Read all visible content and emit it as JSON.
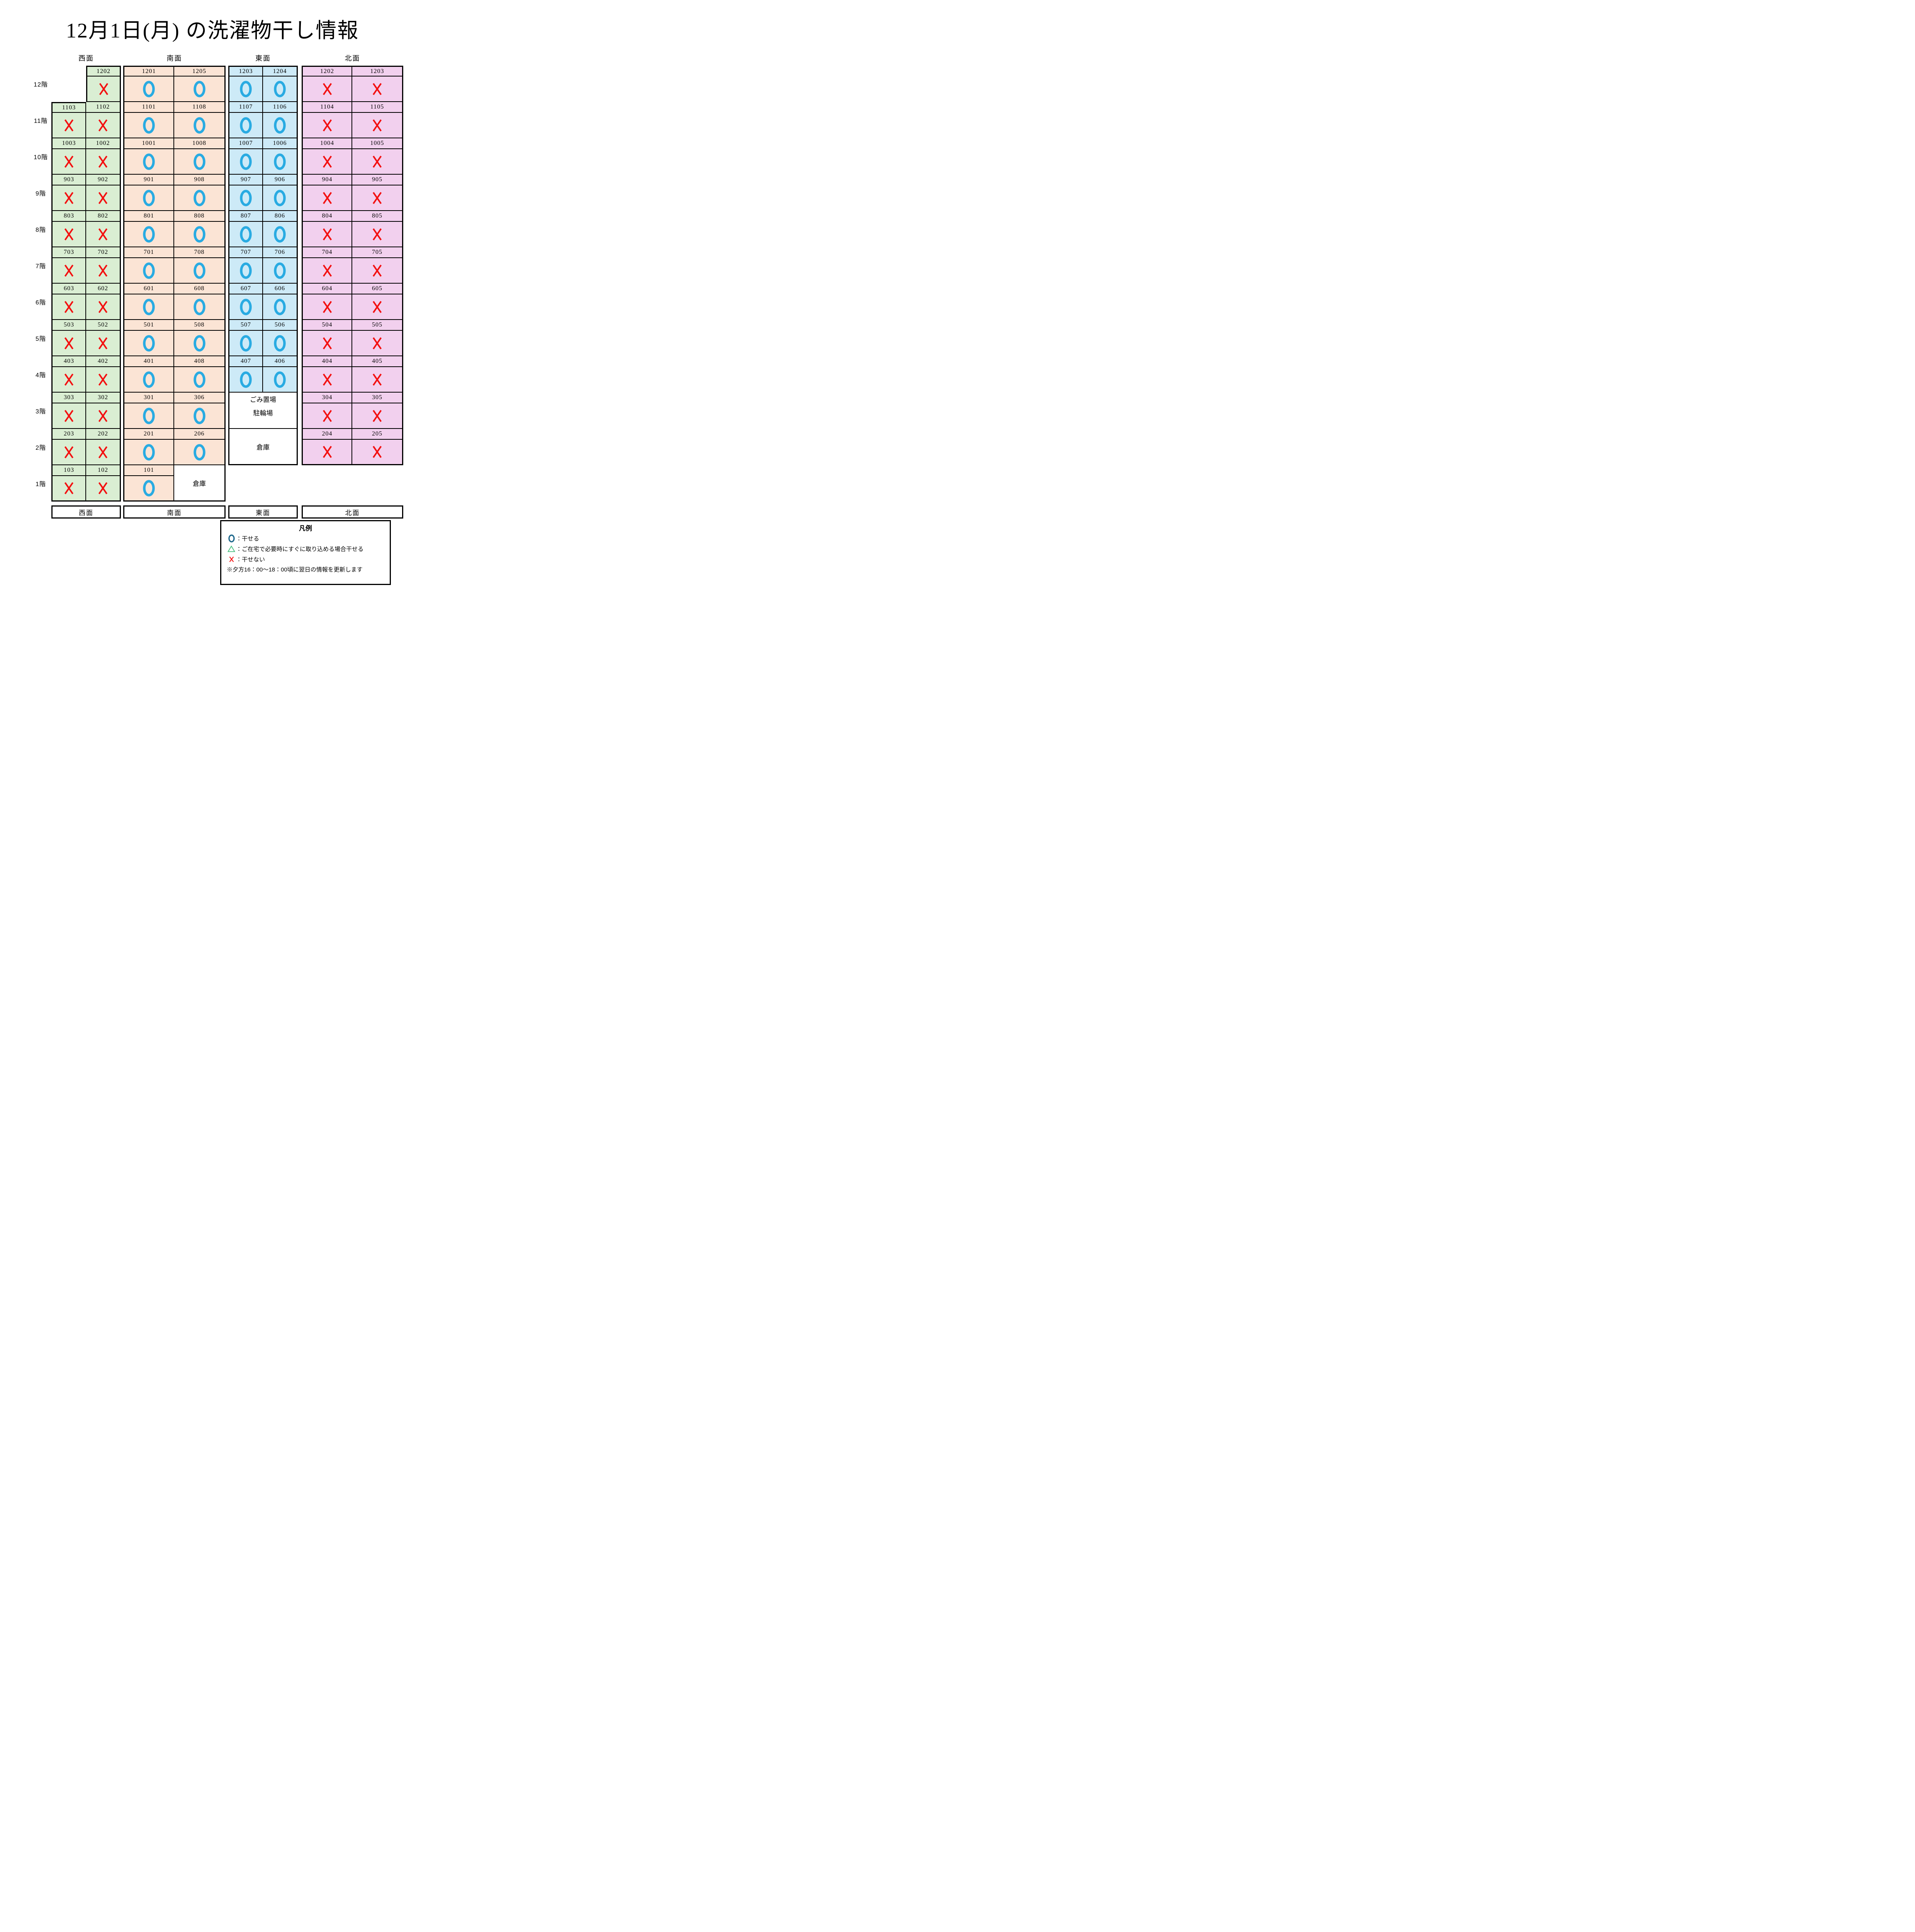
{
  "title": "12月1日(月) の洗濯物干し情報",
  "faces": [
    {
      "id": "west",
      "label": "西面",
      "bg": "#daeed3"
    },
    {
      "id": "south",
      "label": "南面",
      "bg": "#fbe4d5"
    },
    {
      "id": "east",
      "label": "東面",
      "bg": "#cdeaf7"
    },
    {
      "id": "north",
      "label": "北面",
      "bg": "#f2d0ee"
    }
  ],
  "footer_labels": [
    "西面",
    "南面",
    "東面",
    "北面"
  ],
  "colors": {
    "border": "#000000",
    "mark_ok": "#29abe2",
    "mark_no": "#f31111",
    "legend_ok": "#20698c",
    "legend_maybe": "#3dbb78",
    "legend_no": "#f31111"
  },
  "floors": [
    {
      "label": "12階",
      "west": [
        null,
        {
          "room": "1202",
          "mark": "no"
        }
      ],
      "south": [
        {
          "room": "1201",
          "mark": "ok"
        },
        {
          "room": "1205",
          "mark": "ok"
        }
      ],
      "east": [
        {
          "room": "1203",
          "mark": "ok"
        },
        {
          "room": "1204",
          "mark": "ok"
        }
      ],
      "north": [
        {
          "room": "1202",
          "mark": "no"
        },
        {
          "room": "1203",
          "mark": "no"
        }
      ]
    },
    {
      "label": "11階",
      "west": [
        {
          "room": "1103",
          "mark": "no"
        },
        {
          "room": "1102",
          "mark": "no"
        }
      ],
      "south": [
        {
          "room": "1101",
          "mark": "ok"
        },
        {
          "room": "1108",
          "mark": "ok"
        }
      ],
      "east": [
        {
          "room": "1107",
          "mark": "ok"
        },
        {
          "room": "1106",
          "mark": "ok"
        }
      ],
      "north": [
        {
          "room": "1104",
          "mark": "no"
        },
        {
          "room": "1105",
          "mark": "no"
        }
      ]
    },
    {
      "label": "10階",
      "west": [
        {
          "room": "1003",
          "mark": "no"
        },
        {
          "room": "1002",
          "mark": "no"
        }
      ],
      "south": [
        {
          "room": "1001",
          "mark": "ok"
        },
        {
          "room": "1008",
          "mark": "ok"
        }
      ],
      "east": [
        {
          "room": "1007",
          "mark": "ok"
        },
        {
          "room": "1006",
          "mark": "ok"
        }
      ],
      "north": [
        {
          "room": "1004",
          "mark": "no"
        },
        {
          "room": "1005",
          "mark": "no"
        }
      ]
    },
    {
      "label": "9階",
      "west": [
        {
          "room": "903",
          "mark": "no"
        },
        {
          "room": "902",
          "mark": "no"
        }
      ],
      "south": [
        {
          "room": "901",
          "mark": "ok"
        },
        {
          "room": "908",
          "mark": "ok"
        }
      ],
      "east": [
        {
          "room": "907",
          "mark": "ok"
        },
        {
          "room": "906",
          "mark": "ok"
        }
      ],
      "north": [
        {
          "room": "904",
          "mark": "no"
        },
        {
          "room": "905",
          "mark": "no"
        }
      ]
    },
    {
      "label": "8階",
      "west": [
        {
          "room": "803",
          "mark": "no"
        },
        {
          "room": "802",
          "mark": "no"
        }
      ],
      "south": [
        {
          "room": "801",
          "mark": "ok"
        },
        {
          "room": "808",
          "mark": "ok"
        }
      ],
      "east": [
        {
          "room": "807",
          "mark": "ok"
        },
        {
          "room": "806",
          "mark": "ok"
        }
      ],
      "north": [
        {
          "room": "804",
          "mark": "no"
        },
        {
          "room": "805",
          "mark": "no"
        }
      ]
    },
    {
      "label": "7階",
      "west": [
        {
          "room": "703",
          "mark": "no"
        },
        {
          "room": "702",
          "mark": "no"
        }
      ],
      "south": [
        {
          "room": "701",
          "mark": "ok"
        },
        {
          "room": "708",
          "mark": "ok"
        }
      ],
      "east": [
        {
          "room": "707",
          "mark": "ok"
        },
        {
          "room": "706",
          "mark": "ok"
        }
      ],
      "north": [
        {
          "room": "704",
          "mark": "no"
        },
        {
          "room": "705",
          "mark": "no"
        }
      ]
    },
    {
      "label": "6階",
      "west": [
        {
          "room": "603",
          "mark": "no"
        },
        {
          "room": "602",
          "mark": "no"
        }
      ],
      "south": [
        {
          "room": "601",
          "mark": "ok"
        },
        {
          "room": "608",
          "mark": "ok"
        }
      ],
      "east": [
        {
          "room": "607",
          "mark": "ok"
        },
        {
          "room": "606",
          "mark": "ok"
        }
      ],
      "north": [
        {
          "room": "604",
          "mark": "no"
        },
        {
          "room": "605",
          "mark": "no"
        }
      ]
    },
    {
      "label": "5階",
      "west": [
        {
          "room": "503",
          "mark": "no"
        },
        {
          "room": "502",
          "mark": "no"
        }
      ],
      "south": [
        {
          "room": "501",
          "mark": "ok"
        },
        {
          "room": "508",
          "mark": "ok"
        }
      ],
      "east": [
        {
          "room": "507",
          "mark": "ok"
        },
        {
          "room": "506",
          "mark": "ok"
        }
      ],
      "north": [
        {
          "room": "504",
          "mark": "no"
        },
        {
          "room": "505",
          "mark": "no"
        }
      ]
    },
    {
      "label": "4階",
      "west": [
        {
          "room": "403",
          "mark": "no"
        },
        {
          "room": "402",
          "mark": "no"
        }
      ],
      "south": [
        {
          "room": "401",
          "mark": "ok"
        },
        {
          "room": "408",
          "mark": "ok"
        }
      ],
      "east": [
        {
          "room": "407",
          "mark": "ok"
        },
        {
          "room": "406",
          "mark": "ok"
        }
      ],
      "north": [
        {
          "room": "404",
          "mark": "no"
        },
        {
          "room": "405",
          "mark": "no"
        }
      ]
    },
    {
      "label": "3階",
      "west": [
        {
          "room": "303",
          "mark": "no"
        },
        {
          "room": "302",
          "mark": "no"
        }
      ],
      "south": [
        {
          "room": "301",
          "mark": "ok"
        },
        {
          "room": "306",
          "mark": "ok"
        }
      ],
      "east": {
        "special": {
          "lines": [
            "ごみ置場",
            "駐輪場"
          ]
        }
      },
      "north": [
        {
          "room": "304",
          "mark": "no"
        },
        {
          "room": "305",
          "mark": "no"
        }
      ]
    },
    {
      "label": "2階",
      "west": [
        {
          "room": "203",
          "mark": "no"
        },
        {
          "room": "202",
          "mark": "no"
        }
      ],
      "south": [
        {
          "room": "201",
          "mark": "ok"
        },
        {
          "room": "206",
          "mark": "ok"
        }
      ],
      "east": {
        "special": {
          "lines": [
            "倉庫"
          ]
        }
      },
      "north": [
        {
          "room": "204",
          "mark": "no"
        },
        {
          "room": "205",
          "mark": "no"
        }
      ]
    },
    {
      "label": "1階",
      "west": [
        {
          "room": "103",
          "mark": "no"
        },
        {
          "room": "102",
          "mark": "no"
        }
      ],
      "south": [
        {
          "room": "101",
          "mark": "ok"
        },
        {
          "special": {
            "lines": [
              "倉庫"
            ]
          }
        }
      ],
      "east": null,
      "north": null
    }
  ],
  "legend": {
    "title": "凡例",
    "items": [
      {
        "symbol": "circle",
        "text": "：干せる"
      },
      {
        "symbol": "triangle",
        "text": "：ご在宅で必要時にすぐに取り込める場合干せる"
      },
      {
        "symbol": "cross",
        "text": "：干せない"
      }
    ],
    "note": "※夕方16：00～18：00頃に翌日の情報を更新します"
  }
}
